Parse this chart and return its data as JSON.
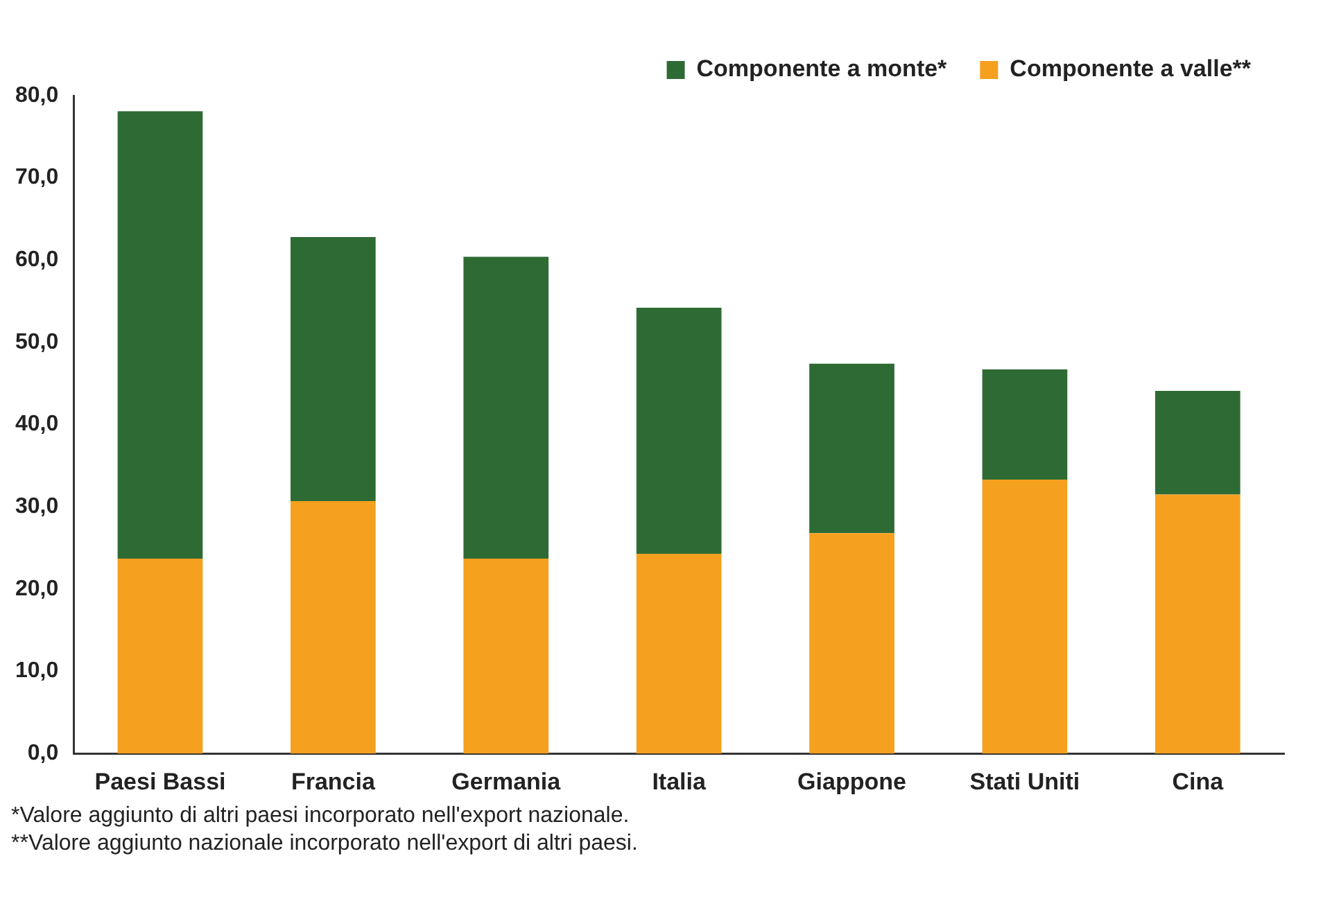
{
  "chart_data": {
    "type": "bar",
    "stacked": true,
    "categories": [
      "Paesi Bassi",
      "Francia",
      "Germania",
      "Italia",
      "Giappone",
      "Stati Uniti",
      "Cina"
    ],
    "series": [
      {
        "name": "Componente a valle**",
        "color": "#f5a01f",
        "values": [
          23.7,
          30.7,
          23.7,
          24.3,
          26.8,
          33.3,
          31.5
        ]
      },
      {
        "name": "Componente a monte*",
        "color": "#2e6b34",
        "values": [
          54.4,
          32.1,
          36.7,
          29.9,
          20.6,
          13.4,
          12.6
        ]
      }
    ],
    "ylim": [
      0,
      80
    ],
    "yticks": [
      {
        "value": 0,
        "label": "0,0"
      },
      {
        "value": 10,
        "label": "10,0"
      },
      {
        "value": 20,
        "label": "20,0"
      },
      {
        "value": 30,
        "label": "30,0"
      },
      {
        "value": 40,
        "label": "40,0"
      },
      {
        "value": 50,
        "label": "50,0"
      },
      {
        "value": 60,
        "label": "60,0"
      },
      {
        "value": 70,
        "label": "70,0"
      },
      {
        "value": 80,
        "label": "80,0"
      }
    ],
    "grid": false,
    "legend": "top right",
    "annotations": [
      "*Valore aggiunto di altri paesi incorporato nell'export nazionale.",
      "**Valore aggiunto nazionale incorporato nell'export di altri paesi."
    ]
  }
}
